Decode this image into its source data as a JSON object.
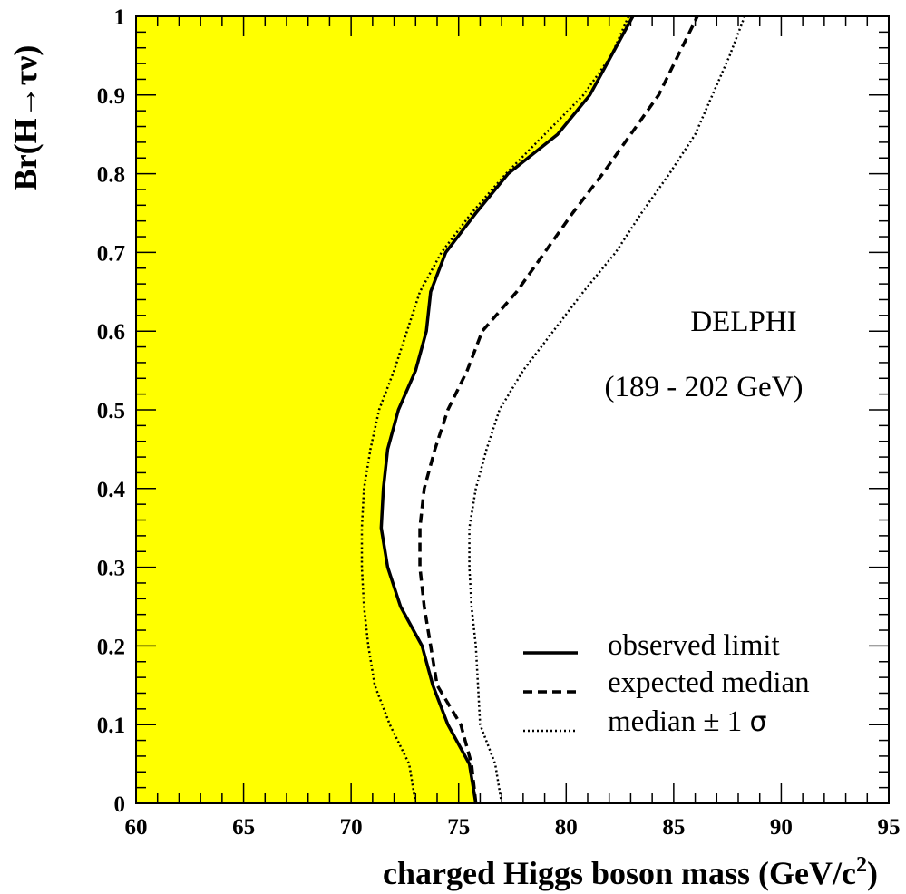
{
  "chart_data": {
    "type": "line",
    "xlabel": "charged Higgs boson mass (GeV/c",
    "xlabel_sup": "2",
    "xlabel_end": ")",
    "ylabel": "Br(H→τν)",
    "xlim": [
      60,
      95
    ],
    "ylim": [
      0,
      1
    ],
    "x_ticks": [
      "60",
      "65",
      "70",
      "75",
      "80",
      "85",
      "90",
      "95"
    ],
    "y_ticks": [
      "0",
      "0.1",
      "0.2",
      "0.3",
      "0.4",
      "0.5",
      "0.6",
      "0.7",
      "0.8",
      "0.9",
      "1"
    ],
    "annotations": [
      "DELPHI",
      "(189 - 202 GeV)"
    ],
    "fill_color": "#ffff00",
    "grid": false,
    "legend_position": "bottom-right",
    "series": [
      {
        "name": "observed limit",
        "style": "solid",
        "points": [
          [
            75.8,
            0.0
          ],
          [
            75.5,
            0.05
          ],
          [
            74.5,
            0.1
          ],
          [
            73.8,
            0.15
          ],
          [
            73.3,
            0.2
          ],
          [
            72.3,
            0.25
          ],
          [
            71.7,
            0.3
          ],
          [
            71.4,
            0.35
          ],
          [
            71.5,
            0.4
          ],
          [
            71.7,
            0.45
          ],
          [
            72.2,
            0.5
          ],
          [
            73.0,
            0.55
          ],
          [
            73.5,
            0.6
          ],
          [
            73.7,
            0.65
          ],
          [
            74.4,
            0.7
          ],
          [
            75.8,
            0.75
          ],
          [
            77.3,
            0.8
          ],
          [
            79.6,
            0.85
          ],
          [
            81.1,
            0.9
          ],
          [
            82.1,
            0.95
          ],
          [
            83.1,
            1.0
          ]
        ]
      },
      {
        "name": "expected median",
        "style": "dashed",
        "points": [
          [
            75.8,
            0.0
          ],
          [
            75.6,
            0.05
          ],
          [
            75.1,
            0.1
          ],
          [
            74.0,
            0.15
          ],
          [
            73.7,
            0.2
          ],
          [
            73.4,
            0.25
          ],
          [
            73.2,
            0.3
          ],
          [
            73.2,
            0.35
          ],
          [
            73.4,
            0.4
          ],
          [
            73.9,
            0.45
          ],
          [
            74.5,
            0.5
          ],
          [
            75.4,
            0.55
          ],
          [
            76.1,
            0.6
          ],
          [
            77.7,
            0.65
          ],
          [
            79.0,
            0.7
          ],
          [
            80.3,
            0.75
          ],
          [
            81.7,
            0.8
          ],
          [
            83.0,
            0.85
          ],
          [
            84.3,
            0.9
          ],
          [
            85.2,
            0.95
          ],
          [
            86.1,
            1.0
          ]
        ]
      },
      {
        "name": "median ± 1 σ",
        "legend_label": "median ± 1 ",
        "legend_symbol": "σ",
        "style": "dotted",
        "bands": [
          [
            [
              73.0,
              0.0
            ],
            [
              72.7,
              0.05
            ],
            [
              71.8,
              0.1
            ],
            [
              71.1,
              0.15
            ],
            [
              70.8,
              0.2
            ],
            [
              70.6,
              0.25
            ],
            [
              70.5,
              0.3
            ],
            [
              70.5,
              0.35
            ],
            [
              70.6,
              0.4
            ],
            [
              70.9,
              0.45
            ],
            [
              71.3,
              0.5
            ],
            [
              72.0,
              0.55
            ],
            [
              72.6,
              0.6
            ],
            [
              73.2,
              0.65
            ],
            [
              74.2,
              0.7
            ],
            [
              75.6,
              0.75
            ],
            [
              77.2,
              0.8
            ],
            [
              79.0,
              0.85
            ],
            [
              80.8,
              0.9
            ],
            [
              82.1,
              0.95
            ],
            [
              82.9,
              1.0
            ]
          ],
          [
            [
              77.0,
              0.0
            ],
            [
              76.7,
              0.05
            ],
            [
              76.0,
              0.1
            ],
            [
              75.9,
              0.15
            ],
            [
              75.8,
              0.2
            ],
            [
              75.6,
              0.25
            ],
            [
              75.5,
              0.3
            ],
            [
              75.5,
              0.35
            ],
            [
              75.8,
              0.4
            ],
            [
              76.3,
              0.45
            ],
            [
              76.9,
              0.5
            ],
            [
              78.0,
              0.55
            ],
            [
              79.4,
              0.6
            ],
            [
              80.8,
              0.65
            ],
            [
              82.3,
              0.7
            ],
            [
              83.5,
              0.75
            ],
            [
              84.8,
              0.8
            ],
            [
              86.0,
              0.85
            ],
            [
              86.8,
              0.9
            ],
            [
              87.6,
              0.95
            ],
            [
              88.3,
              1.0
            ]
          ]
        ]
      }
    ]
  }
}
